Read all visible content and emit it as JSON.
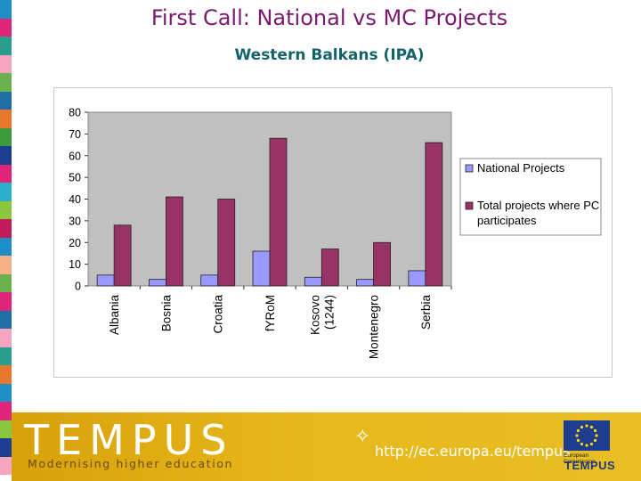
{
  "slide": {
    "title": "First Call:  National vs MC Projects",
    "subtitle": "Western Balkans (IPA)"
  },
  "chart_data": {
    "type": "bar",
    "title": "",
    "xlabel": "",
    "ylabel": "",
    "ylim": [
      0,
      80
    ],
    "y_ticks": [
      0,
      10,
      20,
      30,
      40,
      50,
      60,
      70,
      80
    ],
    "grid": false,
    "legend_position": "right",
    "categories": [
      "Albania",
      "Bosnia",
      "Croatia",
      "fYRoM",
      "Kosovo (1244)",
      "Montenegro",
      "Serbia"
    ],
    "series": [
      {
        "name": "National Projects",
        "color": "#9999ff",
        "values": [
          5,
          3,
          5,
          16,
          4,
          3,
          7
        ]
      },
      {
        "name": "Total projects where PC participates",
        "color": "#993366",
        "values": [
          28,
          41,
          40,
          68,
          17,
          20,
          66
        ]
      }
    ],
    "plot_background": "#c0c0c0"
  },
  "footer": {
    "logo_text": "TEMPUS",
    "tagline": "Modernising higher education",
    "url": "http://ec.europa.eu/tempus",
    "commission_label": "European Commission",
    "small_logo_text": "TEMPUS"
  },
  "left_strip_colors": [
    "#1d8fc6",
    "#e0247a",
    "#2a9d8f",
    "#f6a5c0",
    "#6ab04c",
    "#1d6fa5",
    "#e8772e",
    "#3c9b3c",
    "#1d3e8f",
    "#e0247a",
    "#2bb0c9",
    "#8cc63f",
    "#c21b5a",
    "#1d8fc6",
    "#f4b183",
    "#6ab04c",
    "#e0247a",
    "#1d6fa5",
    "#f6a5c0",
    "#2a9d8f",
    "#e8772e",
    "#1d8fc6",
    "#e0247a",
    "#8cc63f",
    "#1d3e8f",
    "#f6a5c0"
  ]
}
